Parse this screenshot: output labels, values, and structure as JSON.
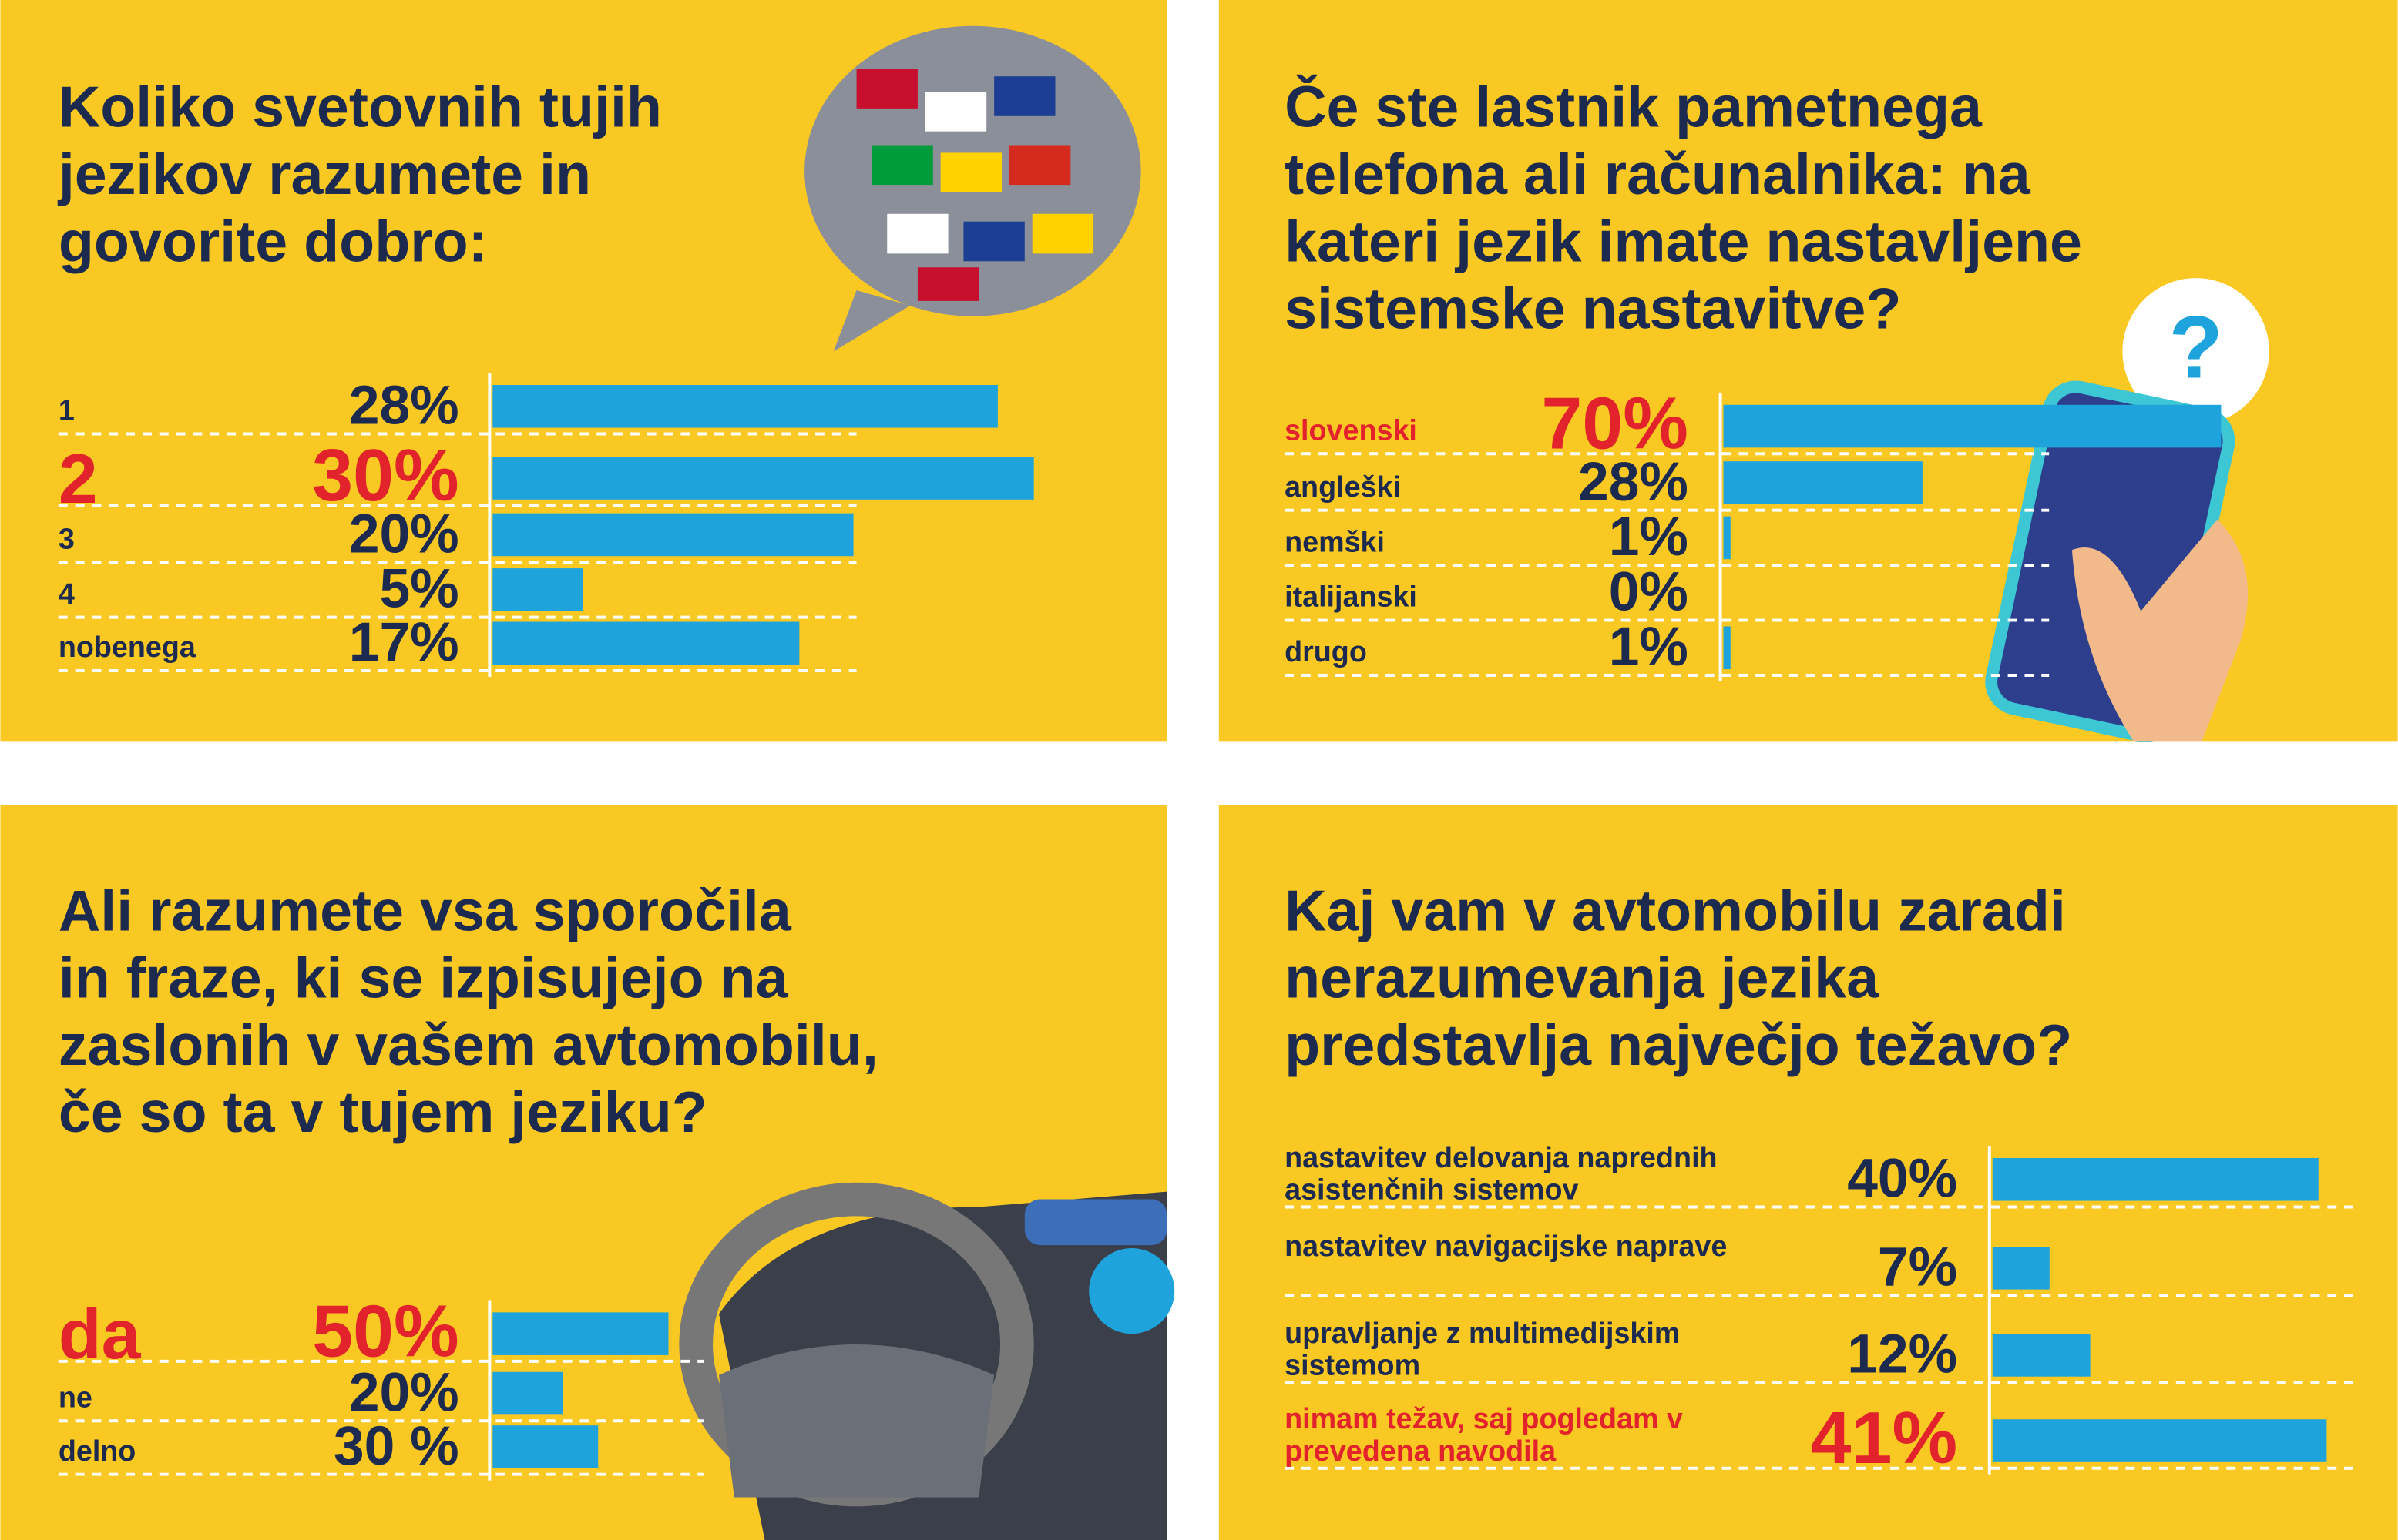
{
  "chart_data": [
    {
      "type": "bar",
      "title": [
        "Koliko svetovnih tujih",
        "jezikov razumete in",
        "govorite dobro:"
      ],
      "categories": [
        "1",
        "2",
        "3",
        "4",
        "nobenega"
      ],
      "values": [
        28,
        30,
        20,
        5,
        17
      ],
      "value_labels": [
        "28%",
        "30%",
        "20%",
        "5%",
        "17%"
      ],
      "highlight": 1,
      "color": "#1ea3dc",
      "highlight_color": "#e3232c"
    },
    {
      "type": "bar",
      "title": [
        "Če ste lastnik pametnega",
        "telefona ali računalnika: na",
        "kateri jezik imate nastavljene",
        "sistemske nastavitve?"
      ],
      "categories": [
        "slovenski",
        "angleški",
        "nemški",
        "italijanski",
        "drugo"
      ],
      "values": [
        70,
        28,
        1,
        0,
        1
      ],
      "value_labels": [
        "70%",
        "28%",
        "1%",
        "0%",
        "1%"
      ],
      "highlight": 0,
      "color": "#1ea3dc",
      "highlight_color": "#e3232c"
    },
    {
      "type": "bar",
      "title": [
        "Ali razumete vsa sporočila",
        "in fraze, ki se izpisujejo na",
        "zaslonih v vašem avtomobilu,",
        "če so ta v tujem jeziku?"
      ],
      "categories": [
        "da",
        "ne",
        "delno"
      ],
      "values": [
        50,
        20,
        30
      ],
      "value_labels": [
        "50%",
        "20%",
        "30 %"
      ],
      "highlight": 0,
      "color": "#1ea3dc",
      "highlight_color": "#e3232c"
    },
    {
      "type": "bar",
      "title": [
        "Kaj vam v avtomobilu zaradi",
        "nerazumevanja jezika",
        "predstavlja največjo težavo?"
      ],
      "categories": [
        "nastavitev delovanja naprednih asistenčnih sistemov",
        "nastavitev navigacijske naprave",
        "upravljanje z multimedijskim sistemom",
        "nimam težav, saj pogledam v prevedena navodila"
      ],
      "values": [
        40,
        7,
        12,
        41
      ],
      "value_labels": [
        "40%",
        "7%",
        "12%",
        "41%"
      ],
      "highlight": 3,
      "color": "#1ea3dc",
      "highlight_color": "#e3232c"
    }
  ]
}
